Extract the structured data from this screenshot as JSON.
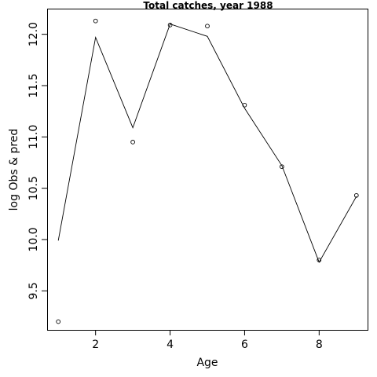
{
  "chart_data": {
    "type": "line",
    "title": "Total catches, year 1988",
    "xlabel": "Age",
    "ylabel": "log Obs & pred",
    "xlim": [
      0.7,
      9.3
    ],
    "ylim": [
      9.12,
      12.25
    ],
    "x_ticks": [
      2,
      4,
      6,
      8
    ],
    "y_ticks": [
      9.5,
      10.0,
      10.5,
      11.0,
      11.5,
      12.0
    ],
    "y_tick_labels": [
      "9.5",
      "10.0",
      "10.5",
      "11.0",
      "11.5",
      "12.0"
    ],
    "grid": false,
    "series": [
      {
        "style": "points",
        "x": [
          1,
          2,
          3,
          4,
          5,
          6,
          7,
          8,
          9
        ],
        "values": [
          9.2,
          12.13,
          10.95,
          12.09,
          12.08,
          11.31,
          10.71,
          9.8,
          10.43
        ]
      },
      {
        "style": "line",
        "x": [
          1,
          2,
          3,
          4,
          5,
          6,
          7,
          8,
          9
        ],
        "values": [
          9.99,
          11.97,
          11.09,
          12.1,
          11.98,
          11.28,
          10.72,
          9.78,
          10.42
        ]
      }
    ]
  }
}
